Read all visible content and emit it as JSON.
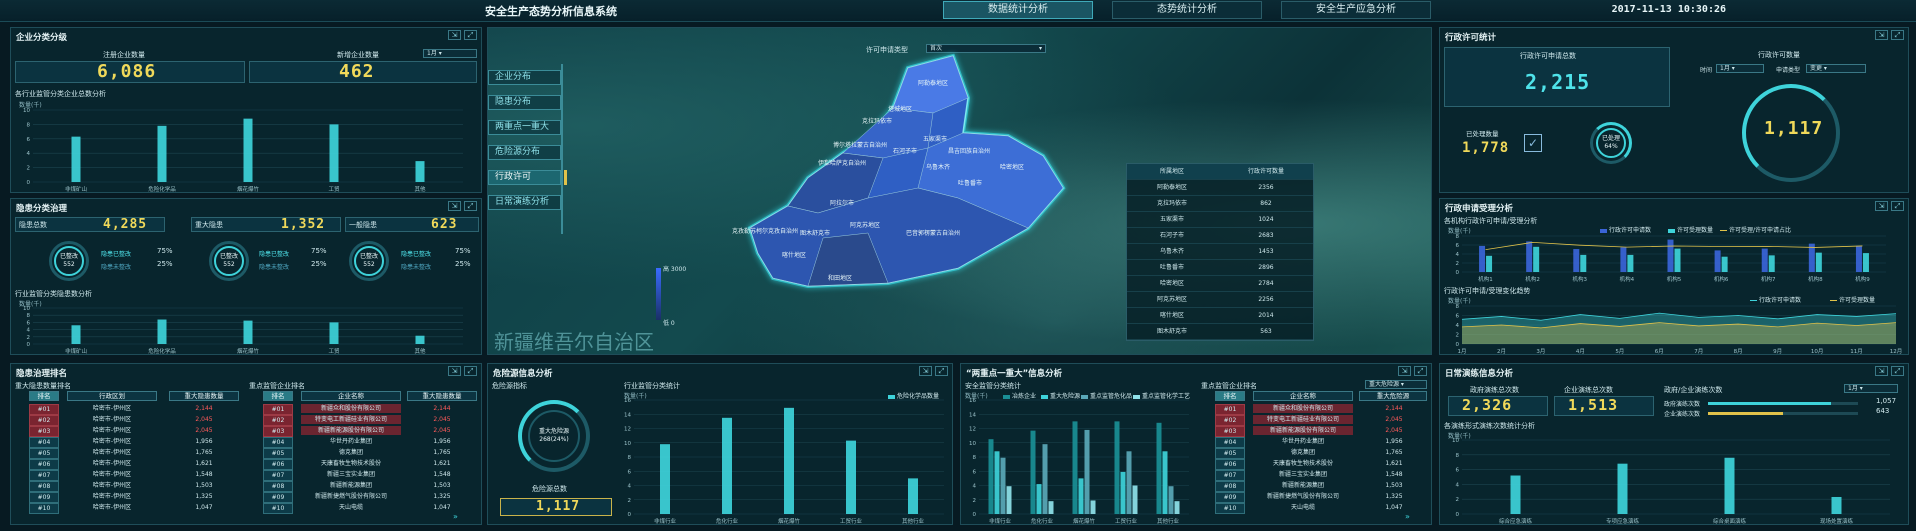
{
  "header": {
    "title": "安全生产态势分析信息系统",
    "tabs": [
      "数据统计分析",
      "态势统计分析",
      "安全生产应急分析"
    ],
    "datetime": "2017-11-13  10:30:26"
  },
  "enterprise": {
    "title": "企业分类分级",
    "registered_label": "注册企业数量",
    "registered_value": "6,086",
    "new_label": "新增企业数量",
    "new_value": "462",
    "period_select": "1月",
    "chart_title": "各行业监管分类企业总数分析",
    "unit": "数量(千)"
  },
  "hazard": {
    "title": "隐患分类治理",
    "total_label": "隐患总数",
    "total_value": "4,285",
    "major_label": "重大隐患",
    "major_value": "1,352",
    "general_label": "一般隐患",
    "general_value": "623",
    "ring_label": "已整改",
    "ring_value": "552",
    "rect_label": "隐患已整改",
    "rect_pct": "75%",
    "unrect_label": "隐患未整改",
    "unrect_pct": "25%",
    "chart_title": "行业监管分类隐患数分析",
    "unit": "数量(千)"
  },
  "map": {
    "select_label": "许可申请类型",
    "select_value": "首次",
    "menu": [
      "企业分布",
      "隐患分布",
      "两重点一重大",
      "危险源分布",
      "行政许可",
      "日常演练分析"
    ],
    "region_name": "新疆维吾尔自治区",
    "scale_high": "高 3000",
    "scale_low": "低 0",
    "table_headers": [
      "所属地区",
      "行政许可数量"
    ],
    "table_rows": [
      [
        "阿勒泰地区",
        "2356"
      ],
      [
        "克拉玛依市",
        "862"
      ],
      [
        "五家渠市",
        "1024"
      ],
      [
        "石河子市",
        "2683"
      ],
      [
        "乌鲁木齐",
        "1453"
      ],
      [
        "吐鲁番市",
        "2896"
      ],
      [
        "哈密地区",
        "2784"
      ],
      [
        "阿克苏地区",
        "2256"
      ],
      [
        "喀什地区",
        "2014"
      ],
      [
        "图木舒克市",
        "563"
      ]
    ],
    "map_labels": [
      "阿勒泰地区",
      "克拉玛依市",
      "塔城地区",
      "伊犁哈萨克自治州",
      "博尔塔拉蒙古自治州",
      "石河子市",
      "五家渠市",
      "昌吉回族自治州",
      "乌鲁木齐",
      "吐鲁番市",
      "哈密地区",
      "阿拉尔市",
      "图木舒克市",
      "阿克苏地区",
      "克孜勒苏柯尔克孜自治州",
      "喀什地区",
      "和田地区",
      "巴音郭楞蒙古自治州"
    ]
  },
  "permit": {
    "title": "行政许可统计",
    "total_label": "行政许可申请总数",
    "total_value": "2,215",
    "done_label": "已处理数量",
    "done_value": "1,778",
    "done_ring_label": "已处理",
    "done_ring_pct": "64%",
    "right_title": "行政许可数量",
    "time_label": "时间",
    "time_value": "1月",
    "type_label": "申请类型",
    "type_value": "变更",
    "gauge_value": "1,117"
  },
  "apply": {
    "title": "行政申请受理分析",
    "bar_title": "各机构行政许可申请/受理分析",
    "legend": [
      "行政许可申请数",
      "许可受理数量",
      "许可受理/许可申请占比"
    ],
    "unit": "数量(千)",
    "trend_title": "行政许可申请/受理变化趋势",
    "trend_legend": [
      "行政许可申请数",
      "许可受理数量"
    ]
  },
  "ranking": {
    "title": "隐患治理排名",
    "left_title": "重大隐患数量排名",
    "left_headers": [
      "排名",
      "行政区划",
      "重大隐患数量"
    ],
    "right_title": "重点监管企业排名",
    "right_headers": [
      "排名",
      "企业名称",
      "重大隐患数量"
    ],
    "left_rows": [
      [
        "#01",
        "哈密市-伊州区",
        "2,144"
      ],
      [
        "#02",
        "哈密市-伊州区",
        "2,045"
      ],
      [
        "#03",
        "哈密市-伊州区",
        "2,045"
      ],
      [
        "#04",
        "哈密市-伊州区",
        "1,956"
      ],
      [
        "#05",
        "哈密市-伊州区",
        "1,765"
      ],
      [
        "#06",
        "哈密市-伊州区",
        "1,621"
      ],
      [
        "#07",
        "哈密市-伊州区",
        "1,548"
      ],
      [
        "#08",
        "哈密市-伊州区",
        "1,503"
      ],
      [
        "#09",
        "哈密市-伊州区",
        "1,325"
      ],
      [
        "#10",
        "哈密市-伊州区",
        "1,047"
      ]
    ],
    "right_rows": [
      [
        "#01",
        "新疆众和股份有限公司",
        "2,144"
      ],
      [
        "#02",
        "特变电工新疆硅业有限公司",
        "2,045"
      ],
      [
        "#03",
        "新疆新能源股份有限公司",
        "2,045"
      ],
      [
        "#04",
        "华世丹药业集团",
        "1,956"
      ],
      [
        "#05",
        "德克集团",
        "1,765"
      ],
      [
        "#06",
        "天康畜牧生物技术股份",
        "1,621"
      ],
      [
        "#07",
        "新疆三宝实业集团",
        "1,548"
      ],
      [
        "#08",
        "新疆新能源集团",
        "1,503"
      ],
      [
        "#09",
        "新疆新捷燃气股份有限公司",
        "1,325"
      ],
      [
        "#10",
        "天山电缆",
        "1,047"
      ]
    ]
  },
  "danger": {
    "title": "危险源信息分析",
    "indicator_label": "危险源指标",
    "ring_line1": "重大危险源",
    "ring_line2": "268(24%)",
    "total_label": "危险源总数",
    "total_value": "1,117",
    "chart_title": "行业监管分类统计",
    "unit": "数量(千)",
    "legend": "危险化学品数量"
  },
  "tworeg": {
    "title": "“两重点一重大”信息分析",
    "chart_title": "安全监管分类统计",
    "unit": "数量(千)",
    "legend": [
      "冶炼企业",
      "重大危险源",
      "重点监管危化品",
      "重点监管化学工艺"
    ],
    "right_title": "重点监管企业排名",
    "select_value": "重大危险源",
    "headers": [
      "排名",
      "企业名称",
      "重大危险源"
    ],
    "rows": [
      [
        "#01",
        "新疆众和股份有限公司",
        "2,144"
      ],
      [
        "#02",
        "特变电工新疆硅业有限公司",
        "2,045"
      ],
      [
        "#03",
        "新疆新能源股份有限公司",
        "2,045"
      ],
      [
        "#04",
        "华世丹药业集团",
        "1,956"
      ],
      [
        "#05",
        "德克集团",
        "1,765"
      ],
      [
        "#06",
        "天康畜牧生物技术股份",
        "1,621"
      ],
      [
        "#07",
        "新疆三宝实业集团",
        "1,548"
      ],
      [
        "#08",
        "新疆新能源集团",
        "1,503"
      ],
      [
        "#09",
        "新疆新捷燃气股份有限公司",
        "1,325"
      ],
      [
        "#10",
        "天山电缆",
        "1,047"
      ]
    ]
  },
  "drill": {
    "title": "日常演练信息分析",
    "gov_label": "政府演练总次数",
    "gov_value": "2,326",
    "ent_label": "企业演练总次数",
    "ent_value": "1,513",
    "ratio_title": "政府/企业演练次数",
    "select_value": "1月",
    "gov_row_label": "政府演练次数",
    "gov_row_value": "1,057",
    "ent_row_label": "企业演练次数",
    "ent_row_value": "643",
    "gov_fraction": 0.82,
    "ent_fraction": 0.5,
    "chart_title": "各演练形式演练次数统计分析",
    "unit": "数量(千)"
  },
  "chart_data": [
    {
      "type": "bar",
      "title": "各行业监管分类企业总数分析",
      "ylabel": "数量(千)",
      "categories": [
        "非煤矿山",
        "危险化学品",
        "烟花爆竹",
        "工贸",
        "其他"
      ],
      "values": [
        6.3,
        7.8,
        8.8,
        8.0,
        2.9
      ],
      "ylim": [
        0,
        10
      ]
    },
    {
      "type": "bar",
      "title": "行业监管分类隐患数分析",
      "ylabel": "数量(千)",
      "categories": [
        "非煤矿山",
        "危险化学品",
        "烟花爆竹",
        "工贸",
        "其他"
      ],
      "values": [
        5.2,
        6.8,
        6.5,
        6.0,
        2.3
      ],
      "ylim": [
        0,
        10
      ]
    },
    {
      "type": "bar",
      "title": "各机构行政许可申请/受理分析",
      "ylabel": "数量(千)",
      "categories": [
        "机构1",
        "机构2",
        "机构3",
        "机构4",
        "机构5",
        "机构6",
        "机构7",
        "机构8",
        "机构9"
      ],
      "series": [
        {
          "name": "行政许可申请数",
          "values": [
            5.8,
            6.8,
            5.1,
            5.5,
            7.2,
            4.8,
            5.2,
            6.3,
            5.8
          ]
        },
        {
          "name": "许可受理数量",
          "values": [
            3.6,
            5.6,
            3.8,
            3.8,
            5.2,
            3.4,
            3.7,
            4.3,
            4.2
          ]
        }
      ],
      "ylim": [
        0,
        8
      ]
    },
    {
      "type": "area",
      "title": "行政许可申请/受理变化趋势",
      "ylabel": "数量(千)",
      "x": [
        "1月",
        "2月",
        "3月",
        "4月",
        "5月",
        "6月",
        "7月",
        "8月",
        "9月",
        "10月",
        "11月",
        "12月"
      ],
      "series": [
        {
          "name": "行政许可申请数",
          "values": [
            5.2,
            5.8,
            5.0,
            6.2,
            5.4,
            6.5,
            5.6,
            6.0,
            5.3,
            6.2,
            5.8,
            6.4
          ]
        },
        {
          "name": "许可受理数量",
          "values": [
            3.6,
            4.0,
            3.4,
            4.3,
            3.7,
            4.5,
            3.8,
            4.2,
            3.6,
            4.4,
            3.9,
            4.5
          ]
        }
      ],
      "ylim": [
        0,
        8
      ]
    },
    {
      "type": "bar",
      "title": "行业监管分类统计",
      "ylabel": "数量(千)",
      "categories": [
        "非煤行业",
        "危化行业",
        "烟花爆竹",
        "工贸行业",
        "其他行业"
      ],
      "values": [
        9.8,
        13.5,
        14.9,
        10.3,
        5.0
      ],
      "ylim": [
        0,
        16
      ]
    },
    {
      "type": "bar",
      "title": "安全监管分类统计",
      "ylabel": "数量(千)",
      "categories": [
        "非煤行业",
        "危化行业",
        "烟花爆竹",
        "工贸行业",
        "其他行业"
      ],
      "series": [
        {
          "name": "冶炼企业",
          "values": [
            10.5,
            11.7,
            13.0,
            13.0,
            12.8
          ]
        },
        {
          "name": "重大危险源",
          "values": [
            8.8,
            4.2,
            5.0,
            5.9,
            8.8
          ]
        },
        {
          "name": "重点监管危化品",
          "values": [
            7.9,
            9.8,
            11.8,
            8.8,
            3.9
          ]
        },
        {
          "name": "重点监管化学工艺",
          "values": [
            3.9,
            1.8,
            1.9,
            4.0,
            1.8
          ]
        }
      ],
      "ylim": [
        0,
        16
      ]
    },
    {
      "type": "bar",
      "title": "各演练形式演练次数统计分析",
      "ylabel": "数量(千)",
      "categories": [
        "综合应急演练",
        "专项应急演练",
        "综合桌面演练",
        "现场处置演练"
      ],
      "values": [
        5.2,
        6.8,
        7.6,
        2.3
      ],
      "ylim": [
        0,
        10
      ]
    }
  ]
}
